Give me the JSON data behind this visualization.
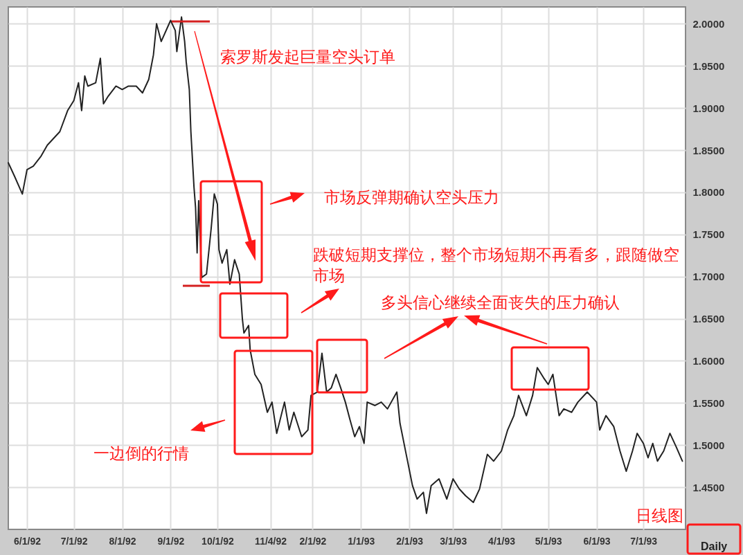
{
  "chart_data": {
    "type": "line",
    "grid": true,
    "x": [
      "1992-05-20",
      "1992-05-24",
      "1992-05-29",
      "1992-06-01",
      "1992-06-05",
      "1992-06-10",
      "1992-06-14",
      "1992-06-18",
      "1992-06-22",
      "1992-06-27",
      "1992-07-01",
      "1992-07-04",
      "1992-07-06",
      "1992-07-08",
      "1992-07-10",
      "1992-07-15",
      "1992-07-18",
      "1992-07-20",
      "1992-07-23",
      "1992-07-28",
      "1992-08-01",
      "1992-08-05",
      "1992-08-10",
      "1992-08-14",
      "1992-08-18",
      "1992-08-21",
      "1992-08-23",
      "1992-08-26",
      "1992-09-01",
      "1992-09-04",
      "1992-09-05",
      "1992-09-08",
      "1992-09-10",
      "1992-09-11",
      "1992-09-13",
      "1992-09-14",
      "1992-09-16",
      "1992-09-17",
      "1992-09-18",
      "1992-09-19",
      "1992-09-21",
      "1992-09-24",
      "1992-09-27",
      "1992-09-29",
      "1992-10-01",
      "1992-10-02",
      "1992-10-04",
      "1992-10-07",
      "1992-10-09",
      "1992-10-12",
      "1992-10-15",
      "1992-10-17",
      "1992-10-18",
      "1992-10-21",
      "1992-10-22",
      "1992-10-25",
      "1992-10-29",
      "1992-11-02",
      "1992-11-05",
      "1992-11-08",
      "1992-11-13",
      "1992-11-16",
      "1992-11-19",
      "1992-11-24",
      "1992-11-28",
      "1992-11-30",
      "1992-12-04",
      "1992-12-07",
      "1992-12-10",
      "1992-12-13",
      "1992-12-16",
      "1992-12-19",
      "1992-12-22",
      "1992-12-25",
      "1992-12-28",
      "1992-12-31",
      "1993-01-03",
      "1993-01-05",
      "1993-01-10",
      "1993-01-14",
      "1993-01-18",
      "1993-01-24",
      "1993-01-26",
      "1993-01-30",
      "1993-02-03",
      "1993-02-06",
      "1993-02-10",
      "1993-02-12",
      "1993-02-15",
      "1993-02-20",
      "1993-02-25",
      "1993-03-01",
      "1993-03-05",
      "1993-03-09",
      "1993-03-14",
      "1993-03-18",
      "1993-03-23",
      "1993-03-27",
      "1993-04-01",
      "1993-04-05",
      "1993-04-09",
      "1993-04-12",
      "1993-04-17",
      "1993-04-21",
      "1993-04-24",
      "1993-04-28",
      "1993-05-01",
      "1993-05-04",
      "1993-05-08",
      "1993-05-11",
      "1993-05-16",
      "1993-05-20",
      "1993-05-26",
      "1993-06-01",
      "1993-06-03",
      "1993-06-07",
      "1993-06-12",
      "1993-06-16",
      "1993-06-20",
      "1993-06-24",
      "1993-06-27",
      "1993-07-01",
      "1993-07-04",
      "1993-07-07",
      "1993-07-10",
      "1993-07-14",
      "1993-07-18",
      "1993-07-22",
      "1993-07-26"
    ],
    "series": [
      {
        "color": "#222222",
        "values": [
          1.835,
          1.819,
          1.798,
          1.827,
          1.831,
          1.843,
          1.856,
          1.864,
          1.872,
          1.897,
          1.909,
          1.93,
          1.897,
          1.938,
          1.926,
          1.93,
          1.959,
          1.905,
          1.914,
          1.926,
          1.922,
          1.926,
          1.926,
          1.918,
          1.934,
          1.963,
          2.0,
          1.979,
          2.004,
          1.992,
          1.967,
          2.008,
          1.979,
          1.955,
          1.922,
          1.872,
          1.806,
          1.782,
          1.728,
          1.79,
          1.699,
          1.703,
          1.757,
          1.798,
          1.786,
          1.732,
          1.716,
          1.732,
          1.691,
          1.72,
          1.703,
          1.65,
          1.633,
          1.642,
          1.613,
          1.584,
          1.572,
          1.539,
          1.551,
          1.514,
          1.551,
          1.518,
          1.539,
          1.51,
          1.518,
          1.559,
          1.563,
          1.609,
          1.563,
          1.568,
          1.584,
          1.568,
          1.551,
          1.53,
          1.51,
          1.522,
          1.502,
          1.551,
          1.547,
          1.551,
          1.543,
          1.563,
          1.526,
          1.489,
          1.452,
          1.436,
          1.444,
          1.419,
          1.452,
          1.46,
          1.436,
          1.46,
          1.448,
          1.44,
          1.432,
          1.448,
          1.489,
          1.481,
          1.493,
          1.518,
          1.535,
          1.559,
          1.535,
          1.559,
          1.592,
          1.58,
          1.572,
          1.584,
          1.535,
          1.543,
          1.539,
          1.551,
          1.563,
          1.551,
          1.518,
          1.535,
          1.522,
          1.493,
          1.469,
          1.493,
          1.514,
          1.502,
          1.485,
          1.502,
          1.481,
          1.493,
          1.514,
          1.498,
          1.481
        ]
      }
    ],
    "xlim": [
      "1992-05-20",
      "1993-07-28"
    ],
    "xticks": [
      {
        "value": "1992-06-01",
        "label": "6/1/92"
      },
      {
        "value": "1992-07-01",
        "label": "7/1/92"
      },
      {
        "value": "1992-08-01",
        "label": "8/1/92"
      },
      {
        "value": "1992-09-01",
        "label": "9/1/92"
      },
      {
        "value": "1992-10-01",
        "label": "10/1/92"
      },
      {
        "value": "1992-11-04",
        "label": "11/4/92"
      },
      {
        "value": "1992-12-01",
        "label": "2/1/92"
      },
      {
        "value": "1993-01-01",
        "label": "1/1/93"
      },
      {
        "value": "1993-02-01",
        "label": "2/1/93"
      },
      {
        "value": "1993-03-01",
        "label": "3/1/93"
      },
      {
        "value": "1993-04-01",
        "label": "4/1/93"
      },
      {
        "value": "1993-05-01",
        "label": "5/1/93"
      },
      {
        "value": "1993-06-01",
        "label": "6/1/93"
      },
      {
        "value": "1993-07-01",
        "label": "7/1/93"
      }
    ],
    "ylim": [
      1.4,
      2.02
    ],
    "yticks": [
      {
        "value": 1.45,
        "label": "1.4500"
      },
      {
        "value": 1.5,
        "label": "1.5000"
      },
      {
        "value": 1.55,
        "label": "1.5500"
      },
      {
        "value": 1.6,
        "label": "1.6000"
      },
      {
        "value": 1.65,
        "label": "1.6500"
      },
      {
        "value": 1.7,
        "label": "1.7000"
      },
      {
        "value": 1.75,
        "label": "1.7500"
      },
      {
        "value": 1.8,
        "label": "1.8000"
      },
      {
        "value": 1.85,
        "label": "1.8500"
      },
      {
        "value": 1.9,
        "label": "1.9000"
      },
      {
        "value": 1.95,
        "label": "1.9500"
      },
      {
        "value": 2.0,
        "label": "2.0000"
      }
    ],
    "annotations": [
      "索罗斯发起巨量空头订单",
      "市场反弹期确认空头压力",
      "跌破短期支撑位，整个市场短期不再看多，跟随做空市场",
      "多头信心继续全面丧失的压力确认",
      "一边倒的行情",
      "日线图",
      "Daily"
    ]
  }
}
